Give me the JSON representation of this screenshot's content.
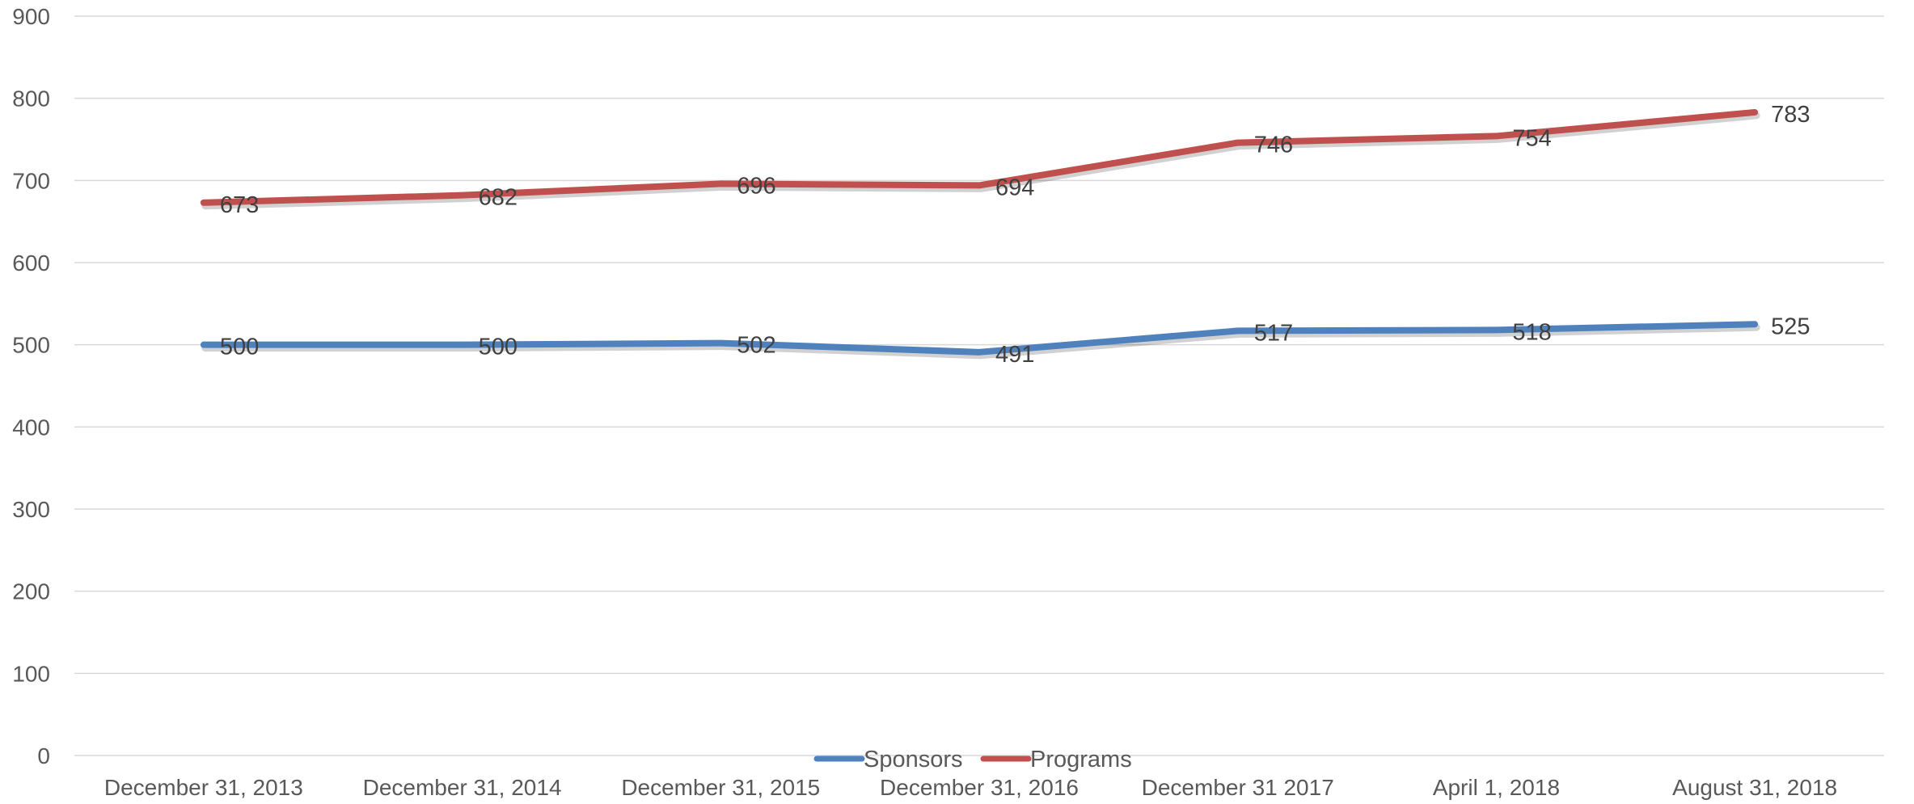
{
  "chart_data": {
    "type": "line",
    "categories": [
      "December 31, 2013",
      "December 31, 2014",
      "December 31, 2015",
      "December 31, 2016",
      "December 31 2017",
      "April 1, 2018",
      "August 31, 2018"
    ],
    "series": [
      {
        "name": "Sponsors",
        "color": "#4f81bd",
        "values": [
          500,
          500,
          502,
          491,
          517,
          518,
          525
        ]
      },
      {
        "name": "Programs",
        "color": "#c0504d",
        "values": [
          673,
          682,
          696,
          694,
          746,
          754,
          783
        ]
      }
    ],
    "y_ticks": [
      "0",
      "100",
      "200",
      "300",
      "400",
      "500",
      "600",
      "700",
      "800",
      "900"
    ],
    "ylim": [
      0,
      900
    ],
    "grid": true,
    "legend": "bottom"
  }
}
